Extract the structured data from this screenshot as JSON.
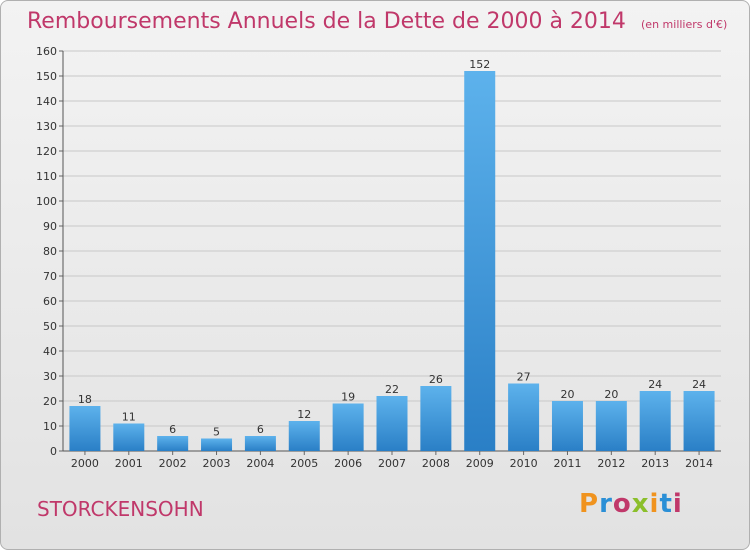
{
  "header": {
    "title": "Remboursements Annuels de la Dette de 2000 à 2014",
    "subtitle": "(en milliers d'€)"
  },
  "commune": "STORCKENSOHN",
  "logo": {
    "text": "Proxiti",
    "colors": [
      "#f0931e",
      "#2a8fd6",
      "#c0386a",
      "#8bbf2b",
      "#f0931e",
      "#2a8fd6",
      "#c0386a"
    ]
  },
  "colors": {
    "title": "#c0386a",
    "bar_light": "#5db2ec",
    "bar_dark": "#2a7fc6",
    "grid": "#c8c8c8"
  },
  "chart_data": {
    "type": "bar",
    "title": "Remboursements Annuels de la Dette de 2000 à 2014",
    "xlabel": "",
    "ylabel": "",
    "ylim": [
      0,
      160
    ],
    "yticks": [
      0,
      10,
      20,
      30,
      40,
      50,
      60,
      70,
      80,
      90,
      100,
      110,
      120,
      130,
      140,
      150,
      160
    ],
    "grid": true,
    "categories": [
      "2000",
      "2001",
      "2002",
      "2003",
      "2004",
      "2005",
      "2006",
      "2007",
      "2008",
      "2009",
      "2010",
      "2011",
      "2012",
      "2013",
      "2014"
    ],
    "values": [
      18,
      11,
      6,
      5,
      6,
      12,
      19,
      22,
      26,
      152,
      27,
      20,
      20,
      24,
      24
    ]
  }
}
